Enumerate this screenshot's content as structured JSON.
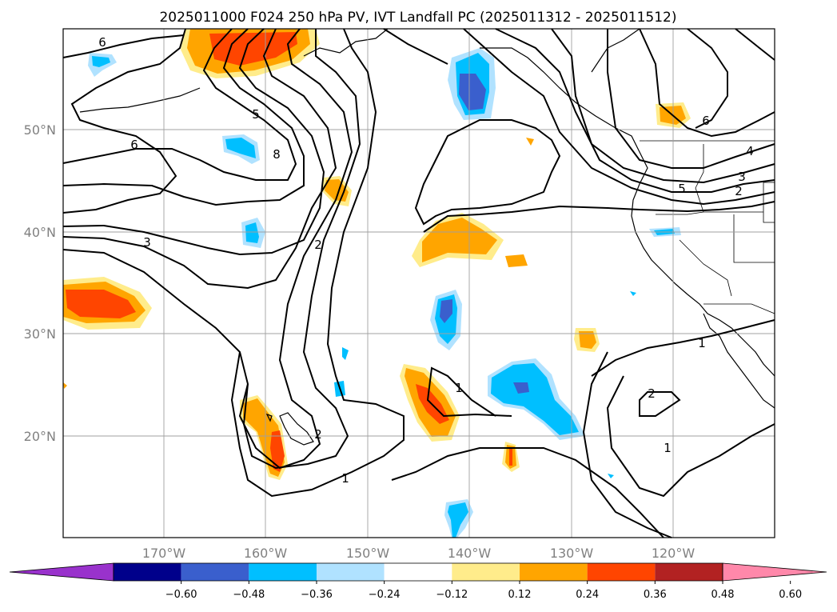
{
  "title": "2025011000 F024 250 hPa PV, IVT Landfall PC (2025011312 - 2025011512)",
  "lat_labels": [
    "50°N",
    "40°N",
    "30°N",
    "20°N"
  ],
  "lon_labels": [
    "170°W",
    "160°W",
    "150°W",
    "140°W",
    "130°W",
    "120°W"
  ],
  "colorbar": {
    "ticks": [
      "−0.60",
      "−0.48",
      "−0.36",
      "−0.24",
      "−0.12",
      "0.12",
      "0.24",
      "0.36",
      "0.48",
      "0.60"
    ],
    "colors": [
      "#9932cc",
      "#00008b",
      "#3a5fcd",
      "#00bfff",
      "#b0e2ff",
      "#ffffff",
      "#ffec8b",
      "#ffa500",
      "#ff4500",
      "#b22222",
      "#ff88aa"
    ]
  },
  "contour_labels": [
    "6",
    "5",
    "6",
    "8",
    "3",
    "2",
    "1",
    "2",
    "1",
    "1",
    "2",
    "1",
    "5",
    "6",
    "4",
    "3",
    "2"
  ],
  "colors": {
    "blue_light": "#b0e2ff",
    "blue": "#00bfff",
    "blue_mid": "#3a5fcd",
    "yellow": "#ffec8b",
    "orange": "#ffa500",
    "red_orange": "#ff4500"
  }
}
